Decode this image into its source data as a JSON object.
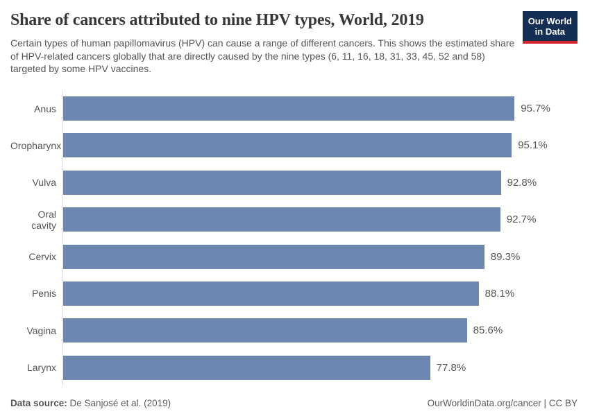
{
  "header": {
    "title": "Share of cancers attributed to nine HPV types, World, 2019",
    "subtitle": "Certain types of human papillomavirus (HPV) can cause a range of different cancers. This shows the estimated share of HPV-related cancers globally that are directly caused by the nine types (6, 11, 16, 18, 31, 33, 45, 52 and 58) targeted by some HPV vaccines.",
    "logo": {
      "line1": "Our World",
      "line2": "in Data",
      "bg_color": "#152e56",
      "accent_color": "#d7262b"
    }
  },
  "chart_data": {
    "type": "bar",
    "orientation": "horizontal",
    "title": "Share of cancers attributed to nine HPV types, World, 2019",
    "categories": [
      "Anus",
      "Oropharynx",
      "Vulva",
      "Oral cavity",
      "Cervix",
      "Penis",
      "Vagina",
      "Larynx"
    ],
    "values": [
      95.7,
      95.1,
      92.8,
      92.7,
      89.3,
      88.1,
      85.6,
      77.8
    ],
    "value_labels": [
      "95.7%",
      "95.1%",
      "92.8%",
      "92.7%",
      "89.3%",
      "88.1%",
      "85.6%",
      "77.8%"
    ],
    "xlabel": "",
    "ylabel": "",
    "xlim": [
      0,
      100
    ],
    "grid": false,
    "legend": false,
    "bar_color": "#6c86af",
    "axis_color": "#dedede",
    "label_color": "#555555"
  },
  "footer": {
    "datasource_label": "Data source:",
    "datasource_value": " De Sanjosé et al. (2019)",
    "credit": "OurWorldinData.org/cancer | CC BY"
  }
}
